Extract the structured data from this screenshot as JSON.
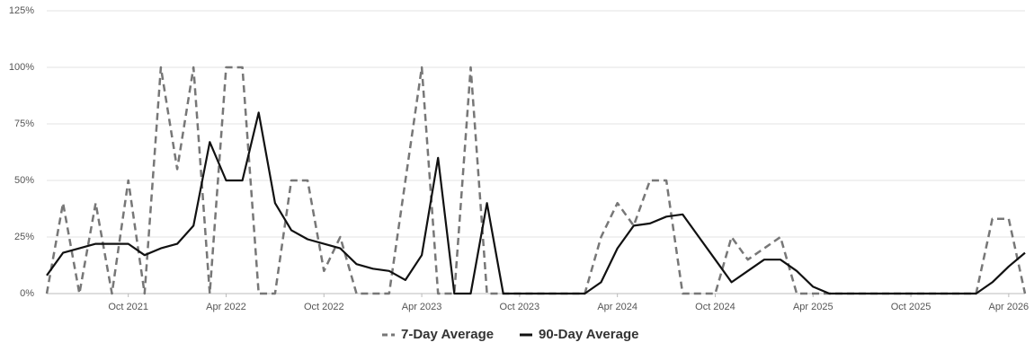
{
  "chart_data": {
    "type": "line",
    "x": [
      "2021-05",
      "2021-06",
      "2021-07",
      "2021-08",
      "2021-09",
      "2021-10",
      "2021-11",
      "2021-12",
      "2022-01",
      "2022-02",
      "2022-03",
      "2022-04",
      "2022-05",
      "2022-06",
      "2022-07",
      "2022-08",
      "2022-09",
      "2022-10",
      "2022-11",
      "2022-12",
      "2023-01",
      "2023-02",
      "2023-03",
      "2023-04",
      "2023-05",
      "2023-06",
      "2023-07",
      "2023-08",
      "2023-09",
      "2023-10",
      "2023-11",
      "2023-12",
      "2024-01",
      "2024-02",
      "2024-03",
      "2024-04",
      "2024-05",
      "2024-06",
      "2024-07",
      "2024-08",
      "2024-09",
      "2024-10",
      "2024-11",
      "2024-12",
      "2025-01",
      "2025-02",
      "2025-03",
      "2025-04",
      "2025-05",
      "2025-06",
      "2025-07",
      "2025-08",
      "2025-09",
      "2025-10",
      "2025-11",
      "2025-12",
      "2026-01",
      "2026-02",
      "2026-03",
      "2026-04",
      "2026-05"
    ],
    "series": [
      {
        "name": "7-Day Average",
        "color": "#777777",
        "dash": true,
        "values": [
          0,
          40,
          0,
          40,
          0,
          50,
          0,
          100,
          55,
          100,
          0,
          100,
          100,
          0,
          0,
          50,
          50,
          10,
          25,
          0,
          0,
          0,
          50,
          100,
          0,
          0,
          100,
          0,
          0,
          0,
          0,
          0,
          0,
          0,
          25,
          40,
          30,
          50,
          50,
          0,
          0,
          0,
          25,
          15,
          20,
          25,
          0,
          0,
          0,
          0,
          0,
          0,
          0,
          0,
          0,
          0,
          0,
          0,
          33,
          33,
          0
        ]
      },
      {
        "name": "90-Day Average",
        "color": "#111111",
        "dash": false,
        "values": [
          8,
          18,
          20,
          22,
          22,
          22,
          17,
          20,
          22,
          30,
          67,
          50,
          50,
          80,
          40,
          28,
          24,
          22,
          20,
          13,
          11,
          10,
          6,
          17,
          60,
          0,
          0,
          40,
          0,
          0,
          0,
          0,
          0,
          0,
          5,
          20,
          30,
          31,
          34,
          35,
          25,
          15,
          5,
          10,
          15,
          15,
          10,
          3,
          0,
          0,
          0,
          0,
          0,
          0,
          0,
          0,
          0,
          0,
          5,
          12,
          18
        ]
      }
    ],
    "xlim": [
      "2021-05",
      "2026-05"
    ],
    "xticks": [
      {
        "value": "2021-10",
        "label": "Oct 2021"
      },
      {
        "value": "2022-04",
        "label": "Apr 2022"
      },
      {
        "value": "2022-10",
        "label": "Oct 2022"
      },
      {
        "value": "2023-04",
        "label": "Apr 2023"
      },
      {
        "value": "2023-10",
        "label": "Oct 2023"
      },
      {
        "value": "2024-04",
        "label": "Apr 2024"
      },
      {
        "value": "2024-10",
        "label": "Oct 2024"
      },
      {
        "value": "2025-04",
        "label": "Apr 2025"
      },
      {
        "value": "2025-10",
        "label": "Oct 2025"
      },
      {
        "value": "2026-04",
        "label": "Apr 2026"
      }
    ],
    "ylim": [
      0,
      125
    ],
    "yticks": [
      {
        "value": 0,
        "label": "0%"
      },
      {
        "value": 25,
        "label": "25%"
      },
      {
        "value": 50,
        "label": "50%"
      },
      {
        "value": 75,
        "label": "75%"
      },
      {
        "value": 100,
        "label": "100%"
      },
      {
        "value": 125,
        "label": "125%"
      }
    ],
    "grid": true,
    "legend": "bottom"
  }
}
